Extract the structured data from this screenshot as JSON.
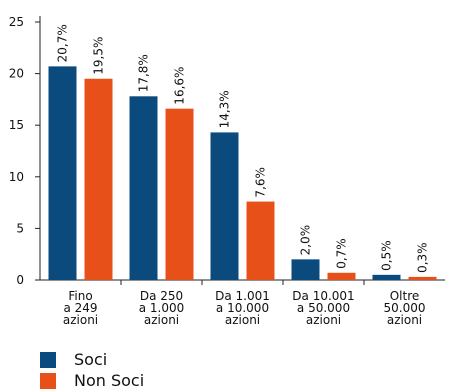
{
  "chart_data": {
    "type": "bar",
    "categories": [
      [
        "Fino",
        "a 249",
        "azioni"
      ],
      [
        "Da 250",
        "a 1.000",
        "azioni"
      ],
      [
        "Da 1.001",
        "a 10.000",
        "azioni"
      ],
      [
        "Da 10.001",
        "a 50.000",
        "azioni"
      ],
      [
        "Oltre",
        "50.000",
        "azioni"
      ]
    ],
    "series": [
      {
        "name": "Soci",
        "values": [
          20.7,
          17.8,
          14.3,
          2.0,
          0.5
        ],
        "labels": [
          "20,7%",
          "17,8%",
          "14,3%",
          "2,0%",
          "0,5%"
        ],
        "color": "#0b4a7d"
      },
      {
        "name": "Non Soci",
        "values": [
          19.5,
          16.6,
          7.6,
          0.7,
          0.3
        ],
        "labels": [
          "19,5%",
          "16,6%",
          "7,6%",
          "0,7%",
          "0,3%"
        ],
        "color": "#e8501a"
      }
    ],
    "ylim": [
      0,
      25
    ],
    "yticks": [
      "0",
      "5",
      "10",
      "15",
      "20",
      "25"
    ],
    "ytick_values": [
      0,
      5,
      10,
      15,
      20,
      25
    ],
    "grid": false,
    "legend_position": "bottom-left"
  }
}
